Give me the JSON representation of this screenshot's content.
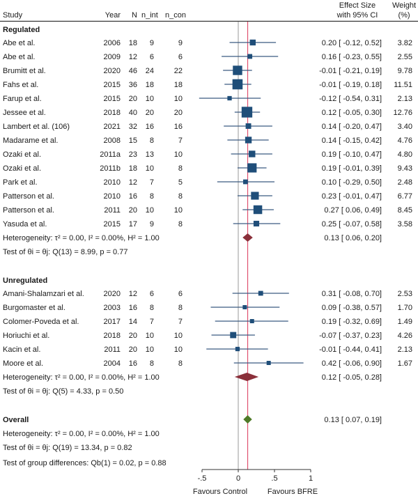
{
  "chart_data": {
    "type": "forest",
    "columns": {
      "study": "Study",
      "year": "Year",
      "n": "N",
      "n_int": "n_int",
      "n_con": "n_con",
      "effect_line1": "Effect Size",
      "effect_line2": "with 95% CI",
      "weight_line1": "Weight",
      "weight_line2": "(%)"
    },
    "xaxis": {
      "range": [
        -0.5,
        1
      ],
      "ticks": [
        -0.5,
        0,
        0.5,
        1
      ],
      "tick_labels": [
        "-.5",
        "0",
        ".5",
        "1"
      ],
      "left_label": "Favours Control",
      "right_label": "Favours BFRE",
      "null_line": 0,
      "overall_line": 0.13
    },
    "colors": {
      "study_marker": "#1f4e79",
      "ci_line": "#3b5a80",
      "subgroup_diamond": "#8b2f3a",
      "overall_diamond": "#4f7a28",
      "overall_line": "#e0506e",
      "null_line": "#999999"
    },
    "groups": [
      {
        "name": "Regulated",
        "studies": [
          {
            "study": "Abe et al.",
            "year": "2006",
            "n": 18,
            "n_int": 9,
            "n_con": 9,
            "es": 0.2,
            "lo": -0.12,
            "hi": 0.52,
            "es_text": "0.20 [ -0.12,  0.52]",
            "weight": "3.82"
          },
          {
            "study": "Abe et al.",
            "year": "2009",
            "n": 12,
            "n_int": 6,
            "n_con": 6,
            "es": 0.16,
            "lo": -0.23,
            "hi": 0.55,
            "es_text": "0.16 [ -0.23,  0.55]",
            "weight": "2.55"
          },
          {
            "study": "Brumitt et al.",
            "year": "2020",
            "n": 46,
            "n_int": 24,
            "n_con": 22,
            "es": -0.01,
            "lo": -0.21,
            "hi": 0.19,
            "es_text": "-0.01 [ -0.21,  0.19]",
            "weight": "9.78"
          },
          {
            "study": "Fahs et al.",
            "year": "2015",
            "n": 36,
            "n_int": 18,
            "n_con": 18,
            "es": -0.01,
            "lo": -0.19,
            "hi": 0.18,
            "es_text": "-0.01 [ -0.19,  0.18]",
            "weight": "11.51"
          },
          {
            "study": "Farup et al.",
            "year": "2015",
            "n": 20,
            "n_int": 10,
            "n_con": 10,
            "es": -0.12,
            "lo": -0.54,
            "hi": 0.31,
            "es_text": "-0.12 [ -0.54,  0.31]",
            "weight": "2.13"
          },
          {
            "study": "Jessee et al.",
            "year": "2018",
            "n": 40,
            "n_int": 20,
            "n_con": 20,
            "es": 0.12,
            "lo": -0.05,
            "hi": 0.3,
            "es_text": "0.12 [ -0.05,  0.30]",
            "weight": "12.76"
          },
          {
            "study": "Lambert et al. (106)",
            "year": "2021",
            "n": 32,
            "n_int": 16,
            "n_con": 16,
            "es": 0.14,
            "lo": -0.2,
            "hi": 0.47,
            "es_text": "0.14 [ -0.20,  0.47]",
            "weight": "3.40"
          },
          {
            "study": "Madarame et al.",
            "year": "2008",
            "n": 15,
            "n_int": 8,
            "n_con": 7,
            "es": 0.14,
            "lo": -0.15,
            "hi": 0.42,
            "es_text": "0.14 [ -0.15,  0.42]",
            "weight": "4.76"
          },
          {
            "study": "Ozaki et al.",
            "year": "2011a",
            "n": 23,
            "n_int": 13,
            "n_con": 10,
            "es": 0.19,
            "lo": -0.1,
            "hi": 0.47,
            "es_text": "0.19 [ -0.10,  0.47]",
            "weight": "4.80"
          },
          {
            "study": "Ozaki et al.",
            "year": "2011b",
            "n": 18,
            "n_int": 10,
            "n_con": 8,
            "es": 0.19,
            "lo": -0.01,
            "hi": 0.39,
            "es_text": "0.19 [ -0.01,  0.39]",
            "weight": "9.43"
          },
          {
            "study": "Park et al.",
            "year": "2010",
            "n": 12,
            "n_int": 7,
            "n_con": 5,
            "es": 0.1,
            "lo": -0.29,
            "hi": 0.5,
            "es_text": "0.10 [ -0.29,  0.50]",
            "weight": "2.48"
          },
          {
            "study": "Patterson et al.",
            "year": "2010",
            "n": 16,
            "n_int": 8,
            "n_con": 8,
            "es": 0.23,
            "lo": -0.01,
            "hi": 0.47,
            "es_text": "0.23 [ -0.01,  0.47]",
            "weight": "6.77"
          },
          {
            "study": "Patterson et al.",
            "year": "2011",
            "n": 20,
            "n_int": 10,
            "n_con": 10,
            "es": 0.27,
            "lo": 0.06,
            "hi": 0.49,
            "es_text": "0.27 [  0.06,  0.49]",
            "weight": "8.45"
          },
          {
            "study": "Yasuda et al.",
            "year": "2015",
            "n": 17,
            "n_int": 9,
            "n_con": 8,
            "es": 0.25,
            "lo": -0.07,
            "hi": 0.58,
            "es_text": "0.25 [ -0.07,  0.58]",
            "weight": "3.58"
          }
        ],
        "pooled": {
          "es": 0.13,
          "lo": 0.06,
          "hi": 0.2,
          "es_text": "0.13 [  0.06,  0.20]"
        },
        "heterogeneity": "Heterogeneity: τ² = 0.00, I² = 0.00%, H² = 1.00",
        "test": "Test of θi = θj: Q(13) = 8.99, p = 0.77"
      },
      {
        "name": "Unregulated",
        "studies": [
          {
            "study": "Amani-Shalamzari et al.",
            "year": "2020",
            "n": 12,
            "n_int": 6,
            "n_con": 6,
            "es": 0.31,
            "lo": -0.08,
            "hi": 0.7,
            "es_text": "0.31 [ -0.08,  0.70]",
            "weight": "2.53"
          },
          {
            "study": "Burgomaster et al.",
            "year": "2003",
            "n": 16,
            "n_int": 8,
            "n_con": 8,
            "es": 0.09,
            "lo": -0.38,
            "hi": 0.57,
            "es_text": "0.09 [ -0.38,  0.57]",
            "weight": "1.70"
          },
          {
            "study": "Colomer-Poveda et al.",
            "year": "2017",
            "n": 14,
            "n_int": 7,
            "n_con": 7,
            "es": 0.19,
            "lo": -0.32,
            "hi": 0.69,
            "es_text": "0.19 [ -0.32,  0.69]",
            "weight": "1.49"
          },
          {
            "study": "Horiuchi et al.",
            "year": "2018",
            "n": 20,
            "n_int": 10,
            "n_con": 10,
            "es": -0.07,
            "lo": -0.37,
            "hi": 0.23,
            "es_text": "-0.07 [ -0.37,  0.23]",
            "weight": "4.26"
          },
          {
            "study": "Kacin et al.",
            "year": "2011",
            "n": 20,
            "n_int": 10,
            "n_con": 10,
            "es": -0.01,
            "lo": -0.44,
            "hi": 0.41,
            "es_text": "-0.01 [ -0.44,  0.41]",
            "weight": "2.13"
          },
          {
            "study": "Moore et al.",
            "year": "2004",
            "n": 16,
            "n_int": 8,
            "n_con": 8,
            "es": 0.42,
            "lo": -0.06,
            "hi": 0.9,
            "es_text": "0.42 [ -0.06,  0.90]",
            "weight": "1.67"
          }
        ],
        "pooled": {
          "es": 0.12,
          "lo": -0.05,
          "hi": 0.28,
          "es_text": "0.12 [ -0.05,  0.28]"
        },
        "heterogeneity": "Heterogeneity: τ² = 0.00, I² = 0.00%, H² = 1.00",
        "test": "Test of θi = θj: Q(5) = 4.33, p = 0.50"
      }
    ],
    "overall": {
      "name": "Overall",
      "es": 0.13,
      "lo": 0.07,
      "hi": 0.19,
      "es_text": "0.13 [  0.07,  0.19]",
      "heterogeneity": "Heterogeneity: τ² = 0.00, I² = 0.00%, H² = 1.00",
      "test": "Test of θi = θj: Q(19) = 13.34, p = 0.82"
    },
    "group_difference_test": "Test of group differences: Qb(1) = 0.02, p = 0.88"
  }
}
